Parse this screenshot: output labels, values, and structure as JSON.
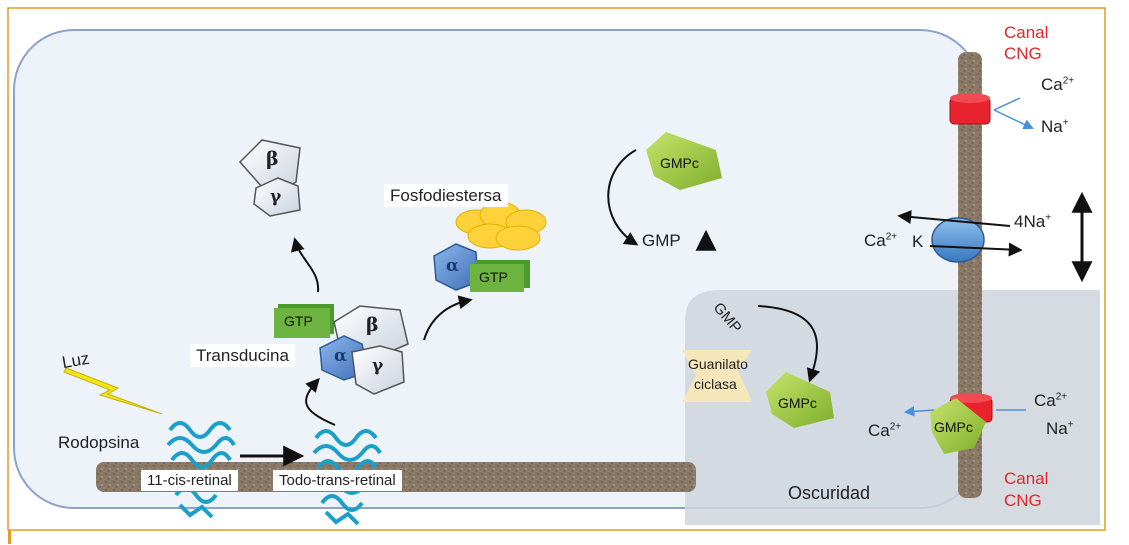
{
  "labels": {
    "luz": "Luz",
    "rodopsina": "Rodopsina",
    "cis_retinal": "11-cis-retinal",
    "trans_retinal": "Todo-trans-retinal",
    "transducina": "Transducina",
    "fosfodiestersa": "Fosfodiestersa",
    "oscuridad": "Oscuridad",
    "guanilato_ciclasa": [
      "Guanilato",
      "ciclasa"
    ],
    "canal_cng_top": [
      "Canal",
      "CNG"
    ],
    "canal_cng_bottom": [
      "Canal",
      "CNG"
    ]
  },
  "molecules": {
    "gtp": "GTP",
    "gmpc": "GMPc",
    "gmp": "GMP",
    "beta": "β",
    "gamma": "γ",
    "alpha": "α"
  },
  "ions": {
    "ca": "Ca",
    "na": "Na",
    "k": "K",
    "na4": "4Na",
    "ca_charge": "2+",
    "na_charge": "+"
  },
  "colors": {
    "frame_border": "#e99a23",
    "cell_fill": "#eef3fa",
    "cell_border": "#8ea2c8",
    "membrane": "#8c7a68",
    "dark_zone": "#d8dde3",
    "red_label": "#e3262b",
    "gtp_green": "#6db33f",
    "gmpc_green": "#a6cf3e",
    "alpha_blue": "#5b8fd0",
    "pde_yellow": "#ffd23a",
    "channel_red": "#e8232e",
    "exchanger_blue": "#5a9ad6",
    "opsin_blue": "#1a9fc9",
    "bolt_yellow": "#f2e51d"
  }
}
